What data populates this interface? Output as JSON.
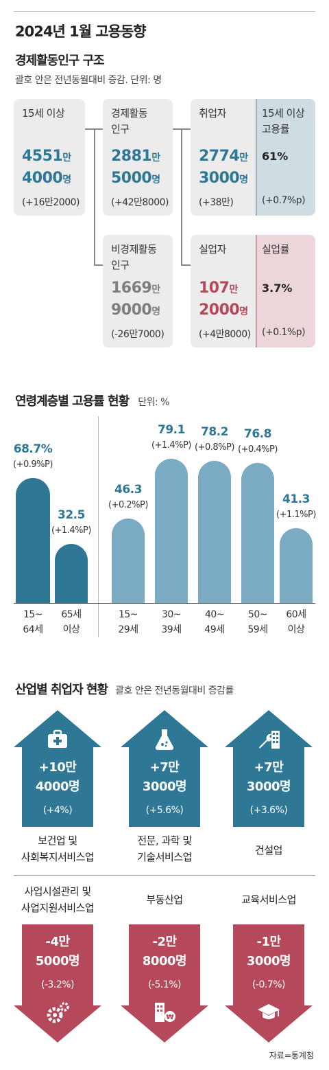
{
  "title": "2024년 1월 고용동향",
  "structure": {
    "heading": "경제활동인구 구조",
    "note": "괄호 안은 전년동월대비 증감. 단위: 명",
    "pop15": {
      "label_1": "15세 이상",
      "num1": "4551",
      "u1": "만",
      "num2": "4000",
      "u2": "명",
      "change": "(+16만2000)"
    },
    "active": {
      "label_1": "경제활동",
      "label_2": "인구",
      "num1": "2881",
      "u1": "만",
      "num2": "5000",
      "u2": "명",
      "change": "(+42만8000)"
    },
    "inactive": {
      "label_1": "비경제활동",
      "label_2": "인구",
      "num1": "1669",
      "u1": "만",
      "num2": "9000",
      "u2": "명",
      "change": "(-26만7000)"
    },
    "employed": {
      "label_1": "취업자",
      "num1": "2774",
      "u1": "만",
      "num2": "3000",
      "u2": "명",
      "change": "(+38만)"
    },
    "emp_rate": {
      "label_1": "15세 이상",
      "label_2": "고용률",
      "value": "61%",
      "change": "(+0.7%p)"
    },
    "unemployed": {
      "label_1": "실업자",
      "num1": "107",
      "u1": "만",
      "num2": "2000",
      "u2": "명",
      "change": "(+4만8000)"
    },
    "unemp_rate": {
      "label_1": "실업률",
      "value": "3.7%",
      "change": "(+0.1%p)"
    }
  },
  "age_section": {
    "heading": "연령계층별 고용률 현황",
    "unit": "단위: %"
  },
  "chart_data": {
    "type": "bar",
    "title": "연령계층별 고용률 현황",
    "unit": "%",
    "categories": [
      {
        "line1": "15~",
        "line2": "64세"
      },
      {
        "line1": "65세",
        "line2": "이상"
      },
      {
        "line1": "15~",
        "line2": "29세"
      },
      {
        "line1": "30~",
        "line2": "39세"
      },
      {
        "line1": "40~",
        "line2": "49세"
      },
      {
        "line1": "50~",
        "line2": "59세"
      },
      {
        "line1": "60세",
        "line2": "이상"
      }
    ],
    "values": [
      68.7,
      32.5,
      46.3,
      79.1,
      78.2,
      76.8,
      41.3
    ],
    "value_labels": [
      "68.7%",
      "32.5",
      "46.3",
      "79.1",
      "78.2",
      "76.8",
      "41.3"
    ],
    "changes": [
      "(+0.9%P)",
      "(+1.4%P)",
      "(+0.2%P)",
      "(+1.4%P)",
      "(+0.8%P)",
      "(+0.4%P)",
      "(+1.1%P)"
    ],
    "colors": {
      "group_a": "#2e7896",
      "group_b": "#7aabc3"
    }
  },
  "industry": {
    "heading": "산업별 취업자 현황",
    "note": "괄호 안은 전년동월대비 증감률",
    "up": [
      {
        "icon": "medical-kit-icon",
        "line1": "+10만",
        "line2": "4000명",
        "change": "(+4%)",
        "name1": "보건업 및",
        "name2": "사회복지서비스업"
      },
      {
        "icon": "flask-icon",
        "line1": "+7만",
        "line2": "3000명",
        "change": "(+5.6%)",
        "name1": "전문, 과학 및",
        "name2": "기술서비스업"
      },
      {
        "icon": "wrench-building-icon",
        "line1": "+7만",
        "line2": "3000명",
        "change": "(+3.6%)",
        "name1": "건설업"
      }
    ],
    "down": [
      {
        "icon": "gears-icon",
        "line1": "-4만",
        "line2": "5000명",
        "change": "(-3.2%)",
        "name1": "사업시설관리 및",
        "name2": "사업지원서비스업"
      },
      {
        "icon": "building-won-icon",
        "line1": "-2만",
        "line2": "8000명",
        "change": "(-5.1%)",
        "name1": "부동산업"
      },
      {
        "icon": "graduation-cap-icon",
        "line1": "-1만",
        "line2": "3000명",
        "change": "(-0.7%)",
        "name1": "교육서비스업"
      }
    ],
    "colors": {
      "up": "#2e7896",
      "down": "#b5485a"
    }
  },
  "source": "자료=통계청"
}
